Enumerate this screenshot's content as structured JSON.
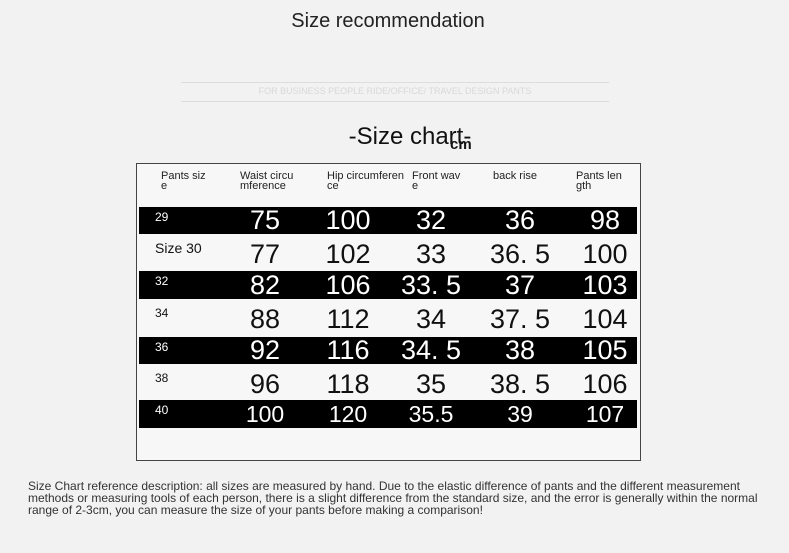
{
  "header": {
    "title": "Size recommendation",
    "tagline": "FOR BUSINESS PEOPLE RIDE/OFFICE/ TRAVEL DESIGN PANTS"
  },
  "size_chart": {
    "title": "-Size chart-",
    "unit": "cm",
    "columns": [
      "Pants size",
      "Waist circumference",
      "Hip circumference",
      "Front wave",
      "back rise",
      "Pants length"
    ],
    "rows": [
      [
        "29",
        "75",
        "100",
        "32",
        "36",
        "98"
      ],
      [
        "Size 30",
        "77",
        "102",
        "33",
        "36. 5",
        "100"
      ],
      [
        "32",
        "82",
        "106",
        "33. 5",
        "37",
        "103"
      ],
      [
        "34",
        "88",
        "112",
        "34",
        "37. 5",
        "104"
      ],
      [
        "36",
        "92",
        "116",
        "34. 5",
        "38",
        "105"
      ],
      [
        "38",
        "96",
        "118",
        "35",
        "38. 5",
        "106"
      ],
      [
        "40",
        "100",
        "120",
        "35.5",
        "39",
        "107"
      ]
    ]
  },
  "note": "Size Chart reference description: all sizes are measured by hand. Due to the elastic difference of pants and the different measurement methods or measuring tools of each person, there is a slight difference from the standard size, and the error is generally within the normal range of 2-3cm, you can measure the size of your pants before making a comparison!"
}
